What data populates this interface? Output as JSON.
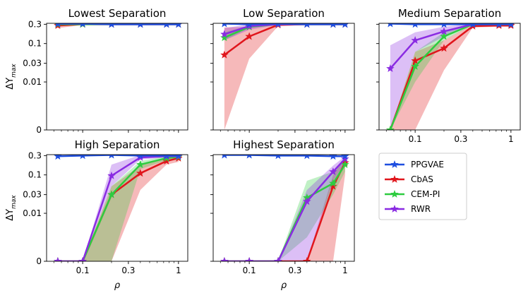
{
  "chart_data": [
    {
      "type": "line",
      "title": "Lowest Separation",
      "xlabel": "",
      "ylabel": "ΔY_max",
      "x": [
        0.055,
        0.1,
        0.2,
        0.4,
        0.75,
        1.0
      ],
      "series": [
        {
          "name": "PPGVAE",
          "values": [
            0.31,
            0.31,
            0.3,
            0.3,
            0.3,
            0.3
          ],
          "band": [
            [
              0.29,
              0.32
            ],
            [
              0.3,
              0.32
            ],
            [
              0.29,
              0.31
            ],
            [
              0.29,
              0.31
            ],
            [
              0.29,
              0.31
            ],
            [
              0.29,
              0.31
            ]
          ]
        },
        {
          "name": "CbAS",
          "values": [
            0.28,
            0.3,
            0.3,
            0.3,
            0.3,
            0.3
          ],
          "band": [
            [
              0.24,
              0.31
            ],
            [
              0.29,
              0.31
            ],
            [
              0.29,
              0.31
            ],
            [
              0.29,
              0.31
            ],
            [
              0.29,
              0.31
            ],
            [
              0.29,
              0.31
            ]
          ]
        },
        {
          "name": "CEM-PI",
          "values": [
            0.3,
            0.3,
            0.3,
            0.3,
            0.3,
            0.3
          ],
          "band": [
            [
              0.28,
              0.31
            ],
            [
              0.29,
              0.31
            ],
            [
              0.29,
              0.31
            ],
            [
              0.29,
              0.31
            ],
            [
              0.29,
              0.31
            ],
            [
              0.29,
              0.31
            ]
          ]
        },
        {
          "name": "RWR",
          "values": [
            0.31,
            0.31,
            0.3,
            0.3,
            0.3,
            0.3
          ],
          "band": [
            [
              0.28,
              0.32
            ],
            [
              0.29,
              0.32
            ],
            [
              0.29,
              0.31
            ],
            [
              0.29,
              0.31
            ],
            [
              0.29,
              0.31
            ],
            [
              0.29,
              0.31
            ]
          ]
        }
      ]
    },
    {
      "type": "line",
      "title": "Low Separation",
      "xlabel": "",
      "ylabel": "",
      "x": [
        0.055,
        0.1,
        0.2,
        0.4,
        0.75,
        1.0
      ],
      "series": [
        {
          "name": "PPGVAE",
          "values": [
            0.31,
            0.3,
            0.31,
            0.3,
            0.3,
            0.3
          ],
          "band": [
            [
              0.3,
              0.32
            ],
            [
              0.29,
              0.31
            ],
            [
              0.3,
              0.32
            ],
            [
              0.29,
              0.31
            ],
            [
              0.29,
              0.31
            ],
            [
              0.29,
              0.31
            ]
          ]
        },
        {
          "name": "CbAS",
          "values": [
            0.05,
            0.15,
            0.29,
            0.3,
            0.3,
            0.3
          ],
          "band": [
            [
              0.0,
              0.25
            ],
            [
              0.04,
              0.26
            ],
            [
              0.27,
              0.31
            ],
            [
              0.29,
              0.31
            ],
            [
              0.29,
              0.31
            ],
            [
              0.29,
              0.31
            ]
          ]
        },
        {
          "name": "CEM-PI",
          "values": [
            0.14,
            0.26,
            0.3,
            0.3,
            0.3,
            0.3
          ],
          "band": [
            [
              0.12,
              0.19
            ],
            [
              0.24,
              0.28
            ],
            [
              0.29,
              0.31
            ],
            [
              0.29,
              0.31
            ],
            [
              0.29,
              0.31
            ],
            [
              0.29,
              0.31
            ]
          ]
        },
        {
          "name": "RWR",
          "values": [
            0.17,
            0.27,
            0.3,
            0.3,
            0.3,
            0.3
          ],
          "band": [
            [
              0.12,
              0.24
            ],
            [
              0.22,
              0.3
            ],
            [
              0.29,
              0.31
            ],
            [
              0.29,
              0.31
            ],
            [
              0.29,
              0.31
            ],
            [
              0.29,
              0.31
            ]
          ]
        }
      ]
    },
    {
      "type": "line",
      "title": "Medium Separation",
      "xlabel": "",
      "ylabel": "",
      "x": [
        0.055,
        0.1,
        0.2,
        0.4,
        0.75,
        1.0
      ],
      "series": [
        {
          "name": "PPGVAE",
          "values": [
            0.31,
            0.3,
            0.3,
            0.3,
            0.3,
            0.3
          ],
          "band": [
            [
              0.3,
              0.32
            ],
            [
              0.29,
              0.31
            ],
            [
              0.29,
              0.31
            ],
            [
              0.29,
              0.31
            ],
            [
              0.29,
              0.31
            ],
            [
              0.29,
              0.31
            ]
          ]
        },
        {
          "name": "CbAS",
          "values": [
            0.0,
            0.035,
            0.075,
            0.27,
            0.28,
            0.28
          ],
          "band": [
            [
              0.0,
              0.0
            ],
            [
              0.0,
              0.06
            ],
            [
              0.02,
              0.12
            ],
            [
              0.25,
              0.3
            ],
            [
              0.26,
              0.3
            ],
            [
              0.26,
              0.3
            ]
          ]
        },
        {
          "name": "CEM-PI",
          "values": [
            0.0,
            0.025,
            0.15,
            0.3,
            0.3,
            0.3
          ],
          "band": [
            [
              0.0,
              0.0
            ],
            [
              0.01,
              0.06
            ],
            [
              0.12,
              0.19
            ],
            [
              0.29,
              0.31
            ],
            [
              0.29,
              0.31
            ],
            [
              0.29,
              0.31
            ]
          ]
        },
        {
          "name": "RWR",
          "values": [
            0.022,
            0.12,
            0.2,
            0.3,
            0.3,
            0.3
          ],
          "band": [
            [
              0.0,
              0.09
            ],
            [
              0.06,
              0.19
            ],
            [
              0.15,
              0.26
            ],
            [
              0.29,
              0.31
            ],
            [
              0.29,
              0.31
            ],
            [
              0.29,
              0.31
            ]
          ]
        }
      ]
    },
    {
      "type": "line",
      "title": "High Separation",
      "xlabel": "ρ",
      "ylabel": "ΔY_max",
      "x": [
        0.055,
        0.1,
        0.2,
        0.4,
        0.75,
        1.0
      ],
      "series": [
        {
          "name": "PPGVAE",
          "values": [
            0.29,
            0.3,
            0.31,
            0.3,
            0.3,
            0.3
          ],
          "band": [
            [
              0.28,
              0.3
            ],
            [
              0.29,
              0.31
            ],
            [
              0.3,
              0.32
            ],
            [
              0.29,
              0.31
            ],
            [
              0.29,
              0.31
            ],
            [
              0.29,
              0.31
            ]
          ]
        },
        {
          "name": "CbAS",
          "values": [
            0.0,
            0.0,
            0.03,
            0.11,
            0.22,
            0.26
          ],
          "band": [
            [
              0.0,
              0.0
            ],
            [
              0.0,
              0.0
            ],
            [
              0.0,
              0.05
            ],
            [
              0.04,
              0.17
            ],
            [
              0.18,
              0.27
            ],
            [
              0.21,
              0.29
            ]
          ]
        },
        {
          "name": "CEM-PI",
          "values": [
            0.0,
            0.0,
            0.03,
            0.18,
            0.26,
            0.28
          ],
          "band": [
            [
              0.0,
              0.0
            ],
            [
              0.0,
              0.0
            ],
            [
              0.0,
              0.05
            ],
            [
              0.14,
              0.22
            ],
            [
              0.23,
              0.29
            ],
            [
              0.25,
              0.3
            ]
          ]
        },
        {
          "name": "RWR",
          "values": [
            0.0,
            0.0,
            0.095,
            0.27,
            0.29,
            0.29
          ],
          "band": [
            [
              0.0,
              0.0
            ],
            [
              0.0,
              0.0
            ],
            [
              0.05,
              0.18
            ],
            [
              0.24,
              0.31
            ],
            [
              0.27,
              0.31
            ],
            [
              0.27,
              0.31
            ]
          ]
        }
      ]
    },
    {
      "type": "line",
      "title": "Highest Separation",
      "xlabel": "ρ",
      "ylabel": "",
      "x": [
        0.055,
        0.1,
        0.2,
        0.4,
        0.75,
        1.0
      ],
      "series": [
        {
          "name": "PPGVAE",
          "values": [
            0.31,
            0.31,
            0.3,
            0.3,
            0.29,
            0.29
          ],
          "band": [
            [
              0.3,
              0.32
            ],
            [
              0.3,
              0.32
            ],
            [
              0.29,
              0.31
            ],
            [
              0.29,
              0.31
            ],
            [
              0.28,
              0.3
            ],
            [
              0.28,
              0.3
            ]
          ]
        },
        {
          "name": "CbAS",
          "values": [
            0.0,
            0.0,
            0.0,
            0.0,
            0.05,
            0.2
          ],
          "band": [
            [
              0.0,
              0.0
            ],
            [
              0.0,
              0.0
            ],
            [
              0.0,
              0.0
            ],
            [
              0.0,
              0.0
            ],
            [
              0.0,
              0.1
            ],
            [
              0.1,
              0.27
            ]
          ]
        },
        {
          "name": "CEM-PI",
          "values": [
            0.0,
            0.0,
            0.0,
            0.025,
            0.06,
            0.18
          ],
          "band": [
            [
              0.0,
              0.0
            ],
            [
              0.0,
              0.0
            ],
            [
              0.0,
              0.0
            ],
            [
              0.005,
              0.07
            ],
            [
              0.03,
              0.12
            ],
            [
              0.12,
              0.24
            ]
          ]
        },
        {
          "name": "RWR",
          "values": [
            0.0,
            0.0,
            0.0,
            0.02,
            0.12,
            0.25
          ],
          "band": [
            [
              0.0,
              0.0
            ],
            [
              0.0,
              0.0
            ],
            [
              0.0,
              0.0
            ],
            [
              0.0,
              0.04
            ],
            [
              0.07,
              0.17
            ],
            [
              0.2,
              0.29
            ]
          ]
        }
      ]
    }
  ],
  "axes": {
    "xlim": [
      0.042,
      1.25
    ],
    "xticks": [
      {
        "v": 0.1,
        "label": "0.1"
      },
      {
        "v": 0.3,
        "label": "0.3"
      },
      {
        "v": 1,
        "label": "1"
      }
    ],
    "yticks": [
      {
        "v": 0.3,
        "label": "0.3"
      },
      {
        "v": 0.1,
        "label": "0.1"
      },
      {
        "v": 0.03,
        "label": "0.03"
      },
      {
        "v": 0.01,
        "label": "0.01"
      },
      {
        "v": 0,
        "label": "0"
      }
    ],
    "yscale": "symlog"
  },
  "legend": {
    "placement": "lower-right empty cell",
    "entries": [
      {
        "name": "PPGVAE",
        "color": "#1f4fe0"
      },
      {
        "name": "CbAS",
        "color": "#e0161c"
      },
      {
        "name": "CEM-PI",
        "color": "#2ecc40"
      },
      {
        "name": "RWR",
        "color": "#8a2be2"
      }
    ]
  },
  "colors": {
    "PPGVAE": "#1f4fe0",
    "CbAS": "#e0161c",
    "CEM-PI": "#2ecc40",
    "RWR": "#8a2be2"
  }
}
